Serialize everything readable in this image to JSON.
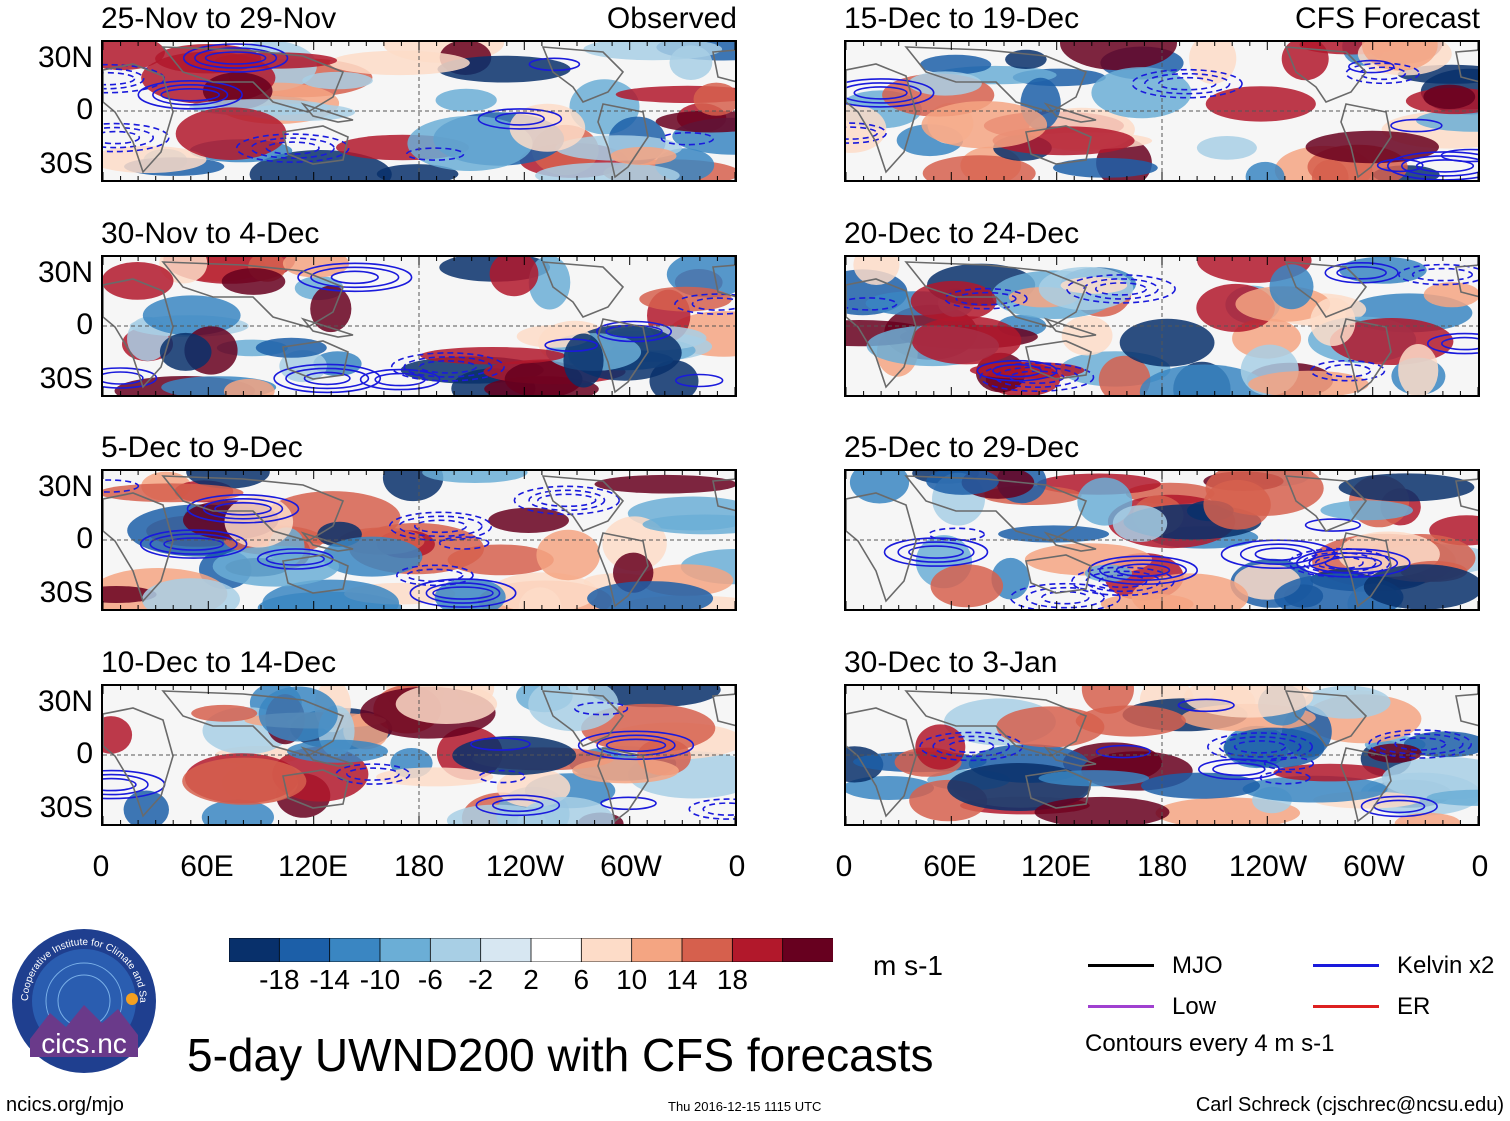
{
  "chart_data": {
    "type": "heatmap",
    "variable": "UWND200",
    "title": "5-day UWND200 with CFS forecasts",
    "units": "m s-1",
    "xticks": [
      "0",
      "60E",
      "120E",
      "180",
      "120W",
      "60W",
      "0"
    ],
    "yticks": [
      "30N",
      "0",
      "30S"
    ],
    "colorbar": {
      "labels": [
        "-18",
        "-14",
        "-10",
        "-6",
        "-2",
        "2",
        "6",
        "10",
        "14",
        "18"
      ],
      "colors": [
        "#08306b",
        "#1c5fa8",
        "#3a86c2",
        "#6baed6",
        "#a8cfe5",
        "#d7e7f2",
        "#ffffff",
        "#fddcc8",
        "#f4a582",
        "#d6604d",
        "#b2182b",
        "#67001f"
      ]
    },
    "contours_note": "Contours every 4 m s-1",
    "panels": [
      {
        "period": "25-Nov to 29-Nov",
        "label": "Observed"
      },
      {
        "period": "30-Nov to 4-Dec",
        "label": ""
      },
      {
        "period": "5-Dec to 9-Dec",
        "label": ""
      },
      {
        "period": "10-Dec to 14-Dec",
        "label": ""
      },
      {
        "period": "15-Dec to 19-Dec",
        "label": "CFS Forecast"
      },
      {
        "period": "20-Dec to 24-Dec",
        "label": ""
      },
      {
        "period": "25-Dec to 29-Dec",
        "label": ""
      },
      {
        "period": "30-Dec to 3-Jan",
        "label": ""
      }
    ],
    "legend": [
      {
        "name": "MJO",
        "color": "#000000"
      },
      {
        "name": "Kelvin x2",
        "color": "#1a1adc"
      },
      {
        "name": "Low",
        "color": "#a040d0"
      },
      {
        "name": "ER",
        "color": "#dd2020"
      }
    ]
  },
  "footer": {
    "logo_text": "cics.nc",
    "logo_ring_text": "Cooperative Institute for Climate and Satellites",
    "url": "ncics.org/mjo",
    "timestamp": "Thu 2016-12-15 1115 UTC",
    "author": "Carl Schreck (cjschrec@ncsu.edu)"
  }
}
